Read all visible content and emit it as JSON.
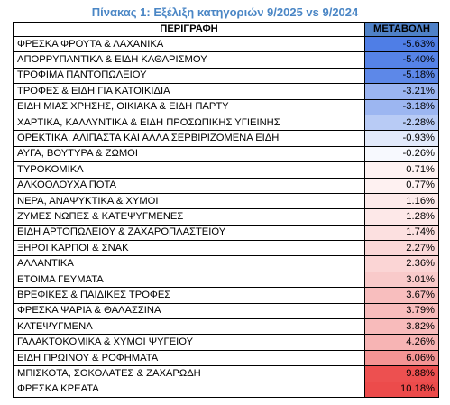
{
  "title": "Πίνακας 1: Εξέλιξη κατηγοριών 9/2025 vs 9/2024",
  "table": {
    "headers": {
      "description": "ΠΕΡΙΓΡΑΦΗ",
      "change": "ΜΕΤΑΒΟΛΗ"
    },
    "header_change_bg": "#4f81c7",
    "rows": [
      {
        "description": "ΦΡΕΣΚΑ ΦΡΟΥΤΑ & ΛΑΧΑΝΙΚΑ",
        "change": "-5.63%",
        "value": -5.63
      },
      {
        "description": "ΑΠΟΡΡΥΠΑΝΤΙΚΑ & ΕΙΔΗ ΚΑΘΑΡΙΣΜΟΥ",
        "change": "-5.40%",
        "value": -5.4
      },
      {
        "description": "ΤΡΟΦΙΜΑ ΠΑΝΤΟΠΩΛΕΙΟΥ",
        "change": "-5.18%",
        "value": -5.18
      },
      {
        "description": "ΤΡΟΦΕΣ & ΕΙΔΗ ΓΙΑ ΚΑΤΟΙΚΙΔΙΑ",
        "change": "-3.21%",
        "value": -3.21
      },
      {
        "description": "ΕΙΔΗ ΜΙΑΣ ΧΡΗΣΗΣ, ΟΙΚΙΑΚΑ & ΕΙΔΗ ΠΑΡΤΥ",
        "change": "-3.18%",
        "value": -3.18
      },
      {
        "description": "ΧΑΡΤΙΚΑ, ΚΑΛΛΥΝΤΙΚΑ & ΕΙΔΗ ΠΡΟΣΩΠΙΚΗΣ ΥΓΙΕΙΝΗΣ",
        "change": "-2.28%",
        "value": -2.28
      },
      {
        "description": "ΟΡΕΚΤΙΚΑ, ΑΛΙΠΑΣΤΑ ΚΑΙ ΑΛΛΑ ΣΕΡΒΙΡΙΖΟΜΕΝΑ ΕΙΔΗ",
        "change": "-0.93%",
        "value": -0.93
      },
      {
        "description": "ΑΥΓΑ, ΒΟΥΤΥΡΑ & ΖΩΜΟΙ",
        "change": "-0.26%",
        "value": -0.26
      },
      {
        "description": "ΤΥΡΟΚΟΜΙΚΑ",
        "change": "0.71%",
        "value": 0.71
      },
      {
        "description": "ΑΛΚΟΟΛΟΥΧΑ ΠΟΤΑ",
        "change": "0.77%",
        "value": 0.77
      },
      {
        "description": "ΝΕΡΑ, ΑΝΑΨΥΚΤΙΚΑ & ΧΥΜΟΙ",
        "change": "1.16%",
        "value": 1.16
      },
      {
        "description": "ΖΥΜΕΣ ΝΩΠΕΣ & ΚΑΤΕΨΥΓΜΕΝΕΣ",
        "change": "1.28%",
        "value": 1.28
      },
      {
        "description": "ΕΙΔΗ ΑΡΤΟΠΩΛΕΙΟΥ & ΖΑΧΑΡΟΠΛΑΣΤΕΙΟΥ",
        "change": "1.74%",
        "value": 1.74
      },
      {
        "description": "ΞΗΡΟΙ ΚΑΡΠΟΙ & ΣΝΑΚ",
        "change": "2.27%",
        "value": 2.27
      },
      {
        "description": "ΑΛΛΑΝΤΙΚΑ",
        "change": "2.36%",
        "value": 2.36
      },
      {
        "description": "ΕΤΟΙΜΑ ΓΕΥΜΑΤΑ",
        "change": "3.01%",
        "value": 3.01
      },
      {
        "description": "ΒΡΕΦΙΚΕΣ & ΠΑΙΔΙΚΕΣ ΤΡΟΦΕΣ",
        "change": "3.67%",
        "value": 3.67
      },
      {
        "description": "ΦΡΕΣΚΑ ΨΑΡΙΑ & ΘΑΛΑΣΣΙΝΑ",
        "change": "3.79%",
        "value": 3.79
      },
      {
        "description": "ΚΑΤΕΨΥΓΜΕΝΑ",
        "change": "3.82%",
        "value": 3.82
      },
      {
        "description": "ΓΑΛΑΚΤΟΚΟΜΙΚΑ & ΧΥΜΟΙ ΨΥΓΕΙΟΥ",
        "change": "4.26%",
        "value": 4.26
      },
      {
        "description": "ΕΙΔΗ ΠΡΩΙΝΟΥ & ΡΟΦΗΜΑΤΑ",
        "change": "6.06%",
        "value": 6.06
      },
      {
        "description": "ΜΠΙΣΚΟΤΑ, ΣΟΚΟΛΑΤΕΣ & ΖΑΧΑΡΩΔΗ",
        "change": "9.88%",
        "value": 9.88
      },
      {
        "description": "ΦΡΕΣΚΑ ΚΡΕΑΤΑ",
        "change": "10.18%",
        "value": 10.18
      }
    ],
    "color_scale": {
      "negative": "#4f7ee6",
      "neutral": "#ffffff",
      "positive": "#ec4b4b"
    }
  }
}
